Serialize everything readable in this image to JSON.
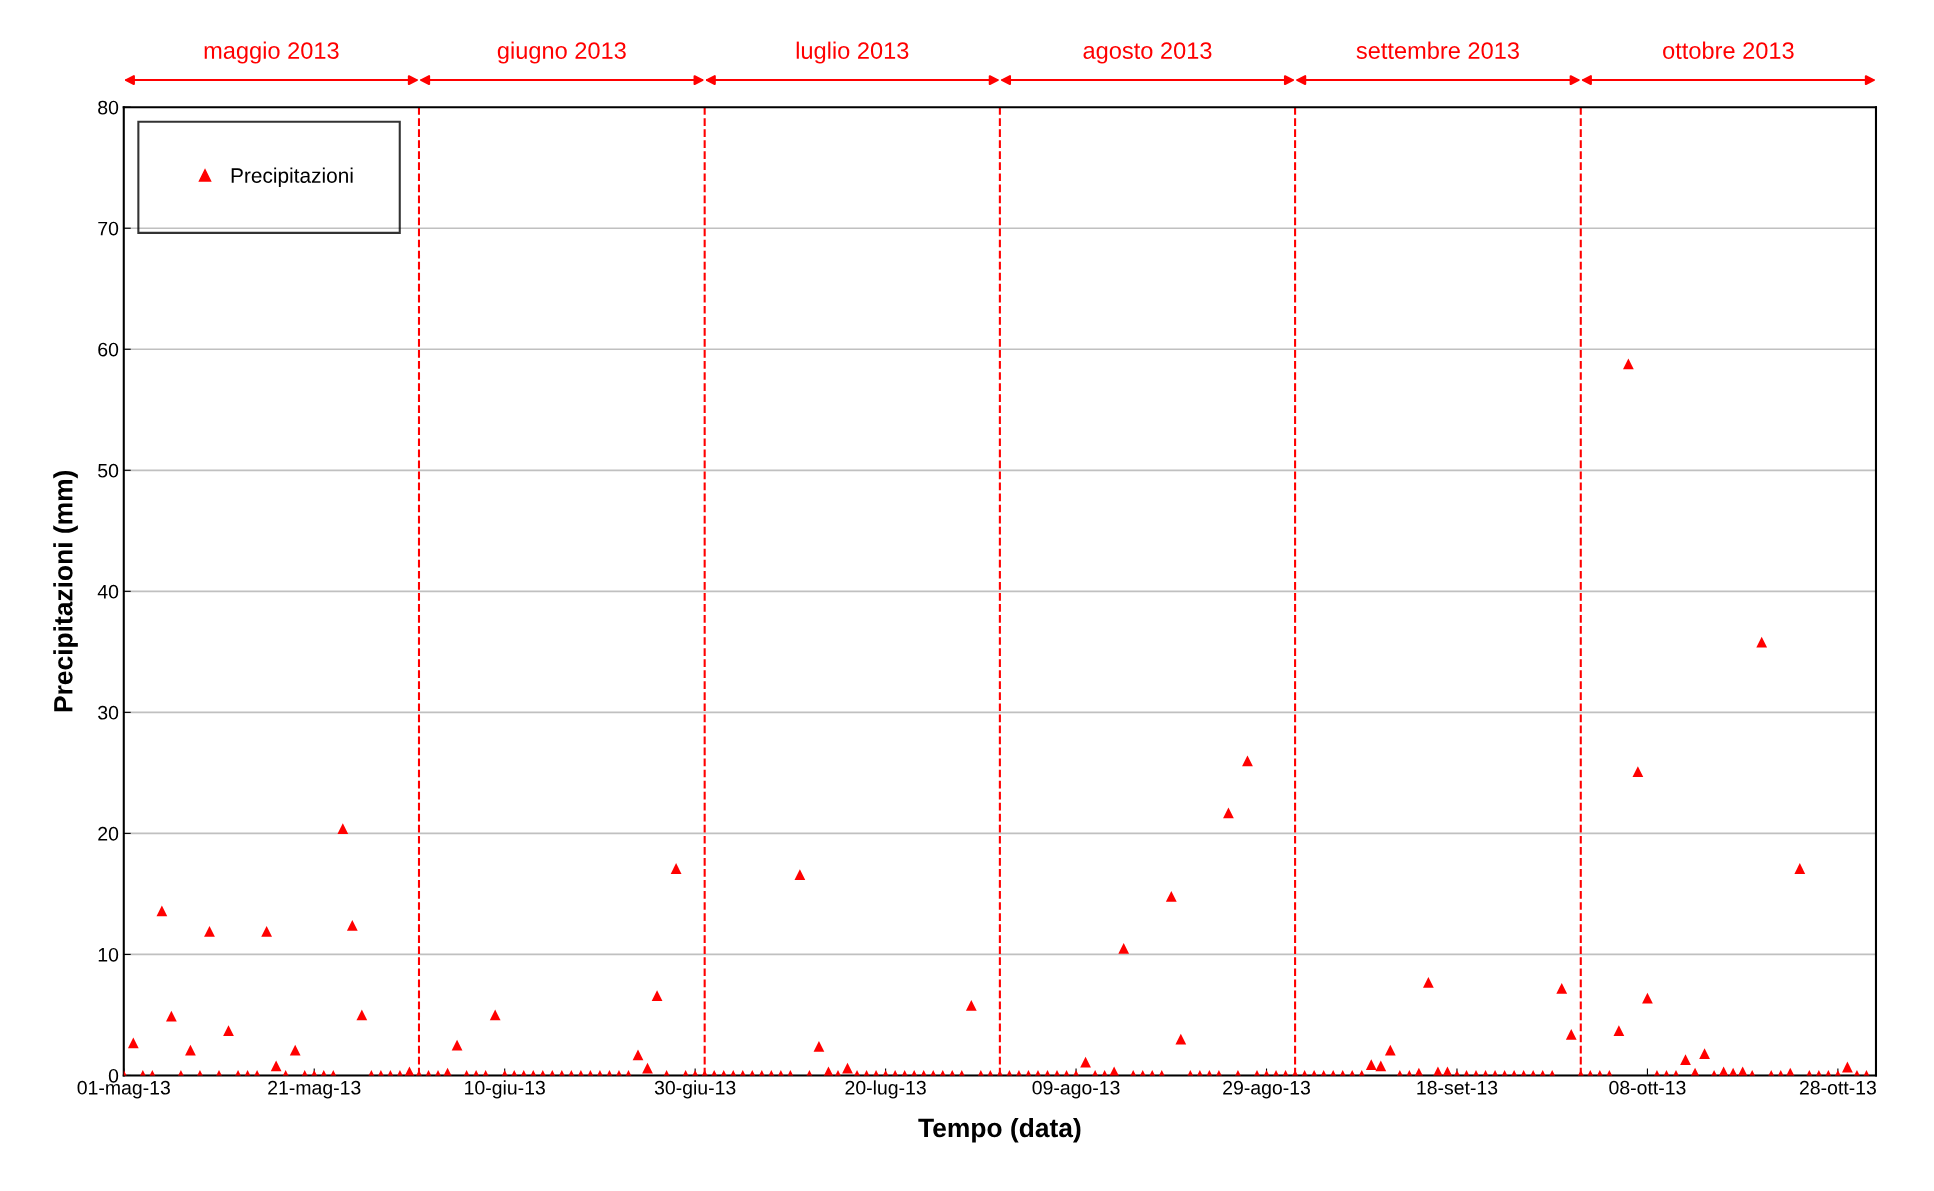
{
  "chart_data": {
    "type": "scatter",
    "xlabel": "Tempo (data)",
    "ylabel": "Precipitazioni (mm)",
    "x": [
      "2013-05-01",
      "2013-05-02",
      "2013-05-03",
      "2013-05-04",
      "2013-05-05",
      "2013-05-06",
      "2013-05-07",
      "2013-05-08",
      "2013-05-09",
      "2013-05-10",
      "2013-05-11",
      "2013-05-12",
      "2013-05-13",
      "2013-05-14",
      "2013-05-15",
      "2013-05-16",
      "2013-05-17",
      "2013-05-18",
      "2013-05-19",
      "2013-05-20",
      "2013-05-21",
      "2013-05-22",
      "2013-05-23",
      "2013-05-24",
      "2013-05-25",
      "2013-05-26",
      "2013-05-27",
      "2013-05-28",
      "2013-05-29",
      "2013-05-30",
      "2013-05-31",
      "2013-06-01",
      "2013-06-02",
      "2013-06-03",
      "2013-06-04",
      "2013-06-05",
      "2013-06-06",
      "2013-06-07",
      "2013-06-08",
      "2013-06-09",
      "2013-06-10",
      "2013-06-11",
      "2013-06-12",
      "2013-06-13",
      "2013-06-14",
      "2013-06-15",
      "2013-06-16",
      "2013-06-17",
      "2013-06-18",
      "2013-06-19",
      "2013-06-20",
      "2013-06-21",
      "2013-06-22",
      "2013-06-23",
      "2013-06-24",
      "2013-06-25",
      "2013-06-26",
      "2013-06-27",
      "2013-06-28",
      "2013-06-29",
      "2013-06-30",
      "2013-07-01",
      "2013-07-02",
      "2013-07-03",
      "2013-07-04",
      "2013-07-05",
      "2013-07-06",
      "2013-07-07",
      "2013-07-08",
      "2013-07-09",
      "2013-07-10",
      "2013-07-11",
      "2013-07-12",
      "2013-07-13",
      "2013-07-14",
      "2013-07-15",
      "2013-07-16",
      "2013-07-17",
      "2013-07-18",
      "2013-07-19",
      "2013-07-20",
      "2013-07-21",
      "2013-07-22",
      "2013-07-23",
      "2013-07-24",
      "2013-07-25",
      "2013-07-26",
      "2013-07-27",
      "2013-07-28",
      "2013-07-29",
      "2013-07-30",
      "2013-07-31",
      "2013-08-01",
      "2013-08-02",
      "2013-08-03",
      "2013-08-04",
      "2013-08-05",
      "2013-08-06",
      "2013-08-07",
      "2013-08-08",
      "2013-08-09",
      "2013-08-10",
      "2013-08-11",
      "2013-08-12",
      "2013-08-13",
      "2013-08-14",
      "2013-08-15",
      "2013-08-16",
      "2013-08-17",
      "2013-08-18",
      "2013-08-19",
      "2013-08-20",
      "2013-08-21",
      "2013-08-22",
      "2013-08-23",
      "2013-08-24",
      "2013-08-25",
      "2013-08-26",
      "2013-08-27",
      "2013-08-28",
      "2013-08-29",
      "2013-08-30",
      "2013-08-31",
      "2013-09-01",
      "2013-09-02",
      "2013-09-03",
      "2013-09-04",
      "2013-09-05",
      "2013-09-06",
      "2013-09-07",
      "2013-09-08",
      "2013-09-09",
      "2013-09-10",
      "2013-09-11",
      "2013-09-12",
      "2013-09-13",
      "2013-09-14",
      "2013-09-15",
      "2013-09-16",
      "2013-09-17",
      "2013-09-18",
      "2013-09-19",
      "2013-09-20",
      "2013-09-21",
      "2013-09-22",
      "2013-09-23",
      "2013-09-24",
      "2013-09-25",
      "2013-09-26",
      "2013-09-27",
      "2013-09-28",
      "2013-09-29",
      "2013-09-30",
      "2013-10-01",
      "2013-10-02",
      "2013-10-03",
      "2013-10-04",
      "2013-10-05",
      "2013-10-06",
      "2013-10-07",
      "2013-10-08",
      "2013-10-09",
      "2013-10-10",
      "2013-10-11",
      "2013-10-12",
      "2013-10-13",
      "2013-10-14",
      "2013-10-15",
      "2013-10-16",
      "2013-10-17",
      "2013-10-18",
      "2013-10-19",
      "2013-10-20",
      "2013-10-21",
      "2013-10-22",
      "2013-10-23",
      "2013-10-24",
      "2013-10-25",
      "2013-10-26",
      "2013-10-27",
      "2013-10-28",
      "2013-10-29",
      "2013-10-30",
      "2013-10-31"
    ],
    "series": [
      {
        "name": "Precipitazioni",
        "color": "#ff0000",
        "values": [
          0,
          2.7,
          0,
          0,
          13.6,
          4.9,
          0,
          2.1,
          0,
          11.9,
          0,
          3.7,
          0,
          0,
          0,
          11.9,
          0.8,
          0,
          2.1,
          0,
          0,
          0,
          0,
          20.4,
          12.4,
          5.0,
          0,
          0,
          0,
          0,
          0.3,
          0,
          0,
          0,
          0.2,
          2.5,
          0,
          0,
          0,
          5.0,
          0,
          0,
          0,
          0,
          0,
          0,
          0,
          0,
          0,
          0,
          0,
          0,
          0,
          0,
          1.7,
          0.6,
          6.6,
          0,
          17.1,
          0,
          0,
          0,
          0,
          0,
          0,
          0,
          0,
          0,
          0,
          0,
          0,
          16.6,
          0,
          2.4,
          0.3,
          0,
          0.6,
          0,
          0,
          0,
          0,
          0,
          0,
          0,
          0,
          0,
          0,
          0,
          0,
          5.8,
          0,
          0,
          0,
          0,
          0,
          0,
          0,
          0,
          0,
          0,
          0,
          1.1,
          0,
          0,
          0.3,
          10.5,
          0,
          0,
          0,
          0,
          14.8,
          3.0,
          0,
          0,
          0,
          0,
          21.7,
          0,
          26.0,
          0,
          0,
          0,
          0,
          0,
          0,
          0,
          0,
          0,
          0,
          0,
          0,
          0.9,
          0.8,
          2.1,
          0,
          0,
          0.2,
          7.7,
          0.3,
          0.3,
          0,
          0,
          0,
          0,
          0,
          0,
          0,
          0,
          0,
          0,
          0,
          7.2,
          3.4,
          0,
          0,
          0,
          0,
          3.7,
          58.8,
          25.1,
          6.4,
          0,
          0,
          0,
          1.3,
          0.2,
          1.8,
          0,
          0.3,
          0.2,
          0.3,
          0,
          35.8,
          0,
          0,
          0.2,
          17.1,
          0,
          0,
          0,
          0,
          0.7,
          0,
          0
        ]
      }
    ],
    "xlim": [
      "2013-05-01",
      "2013-11-01"
    ],
    "xticks": [
      {
        "value": "2013-05-01",
        "label": "01-mag-13"
      },
      {
        "value": "2013-05-21",
        "label": "21-mag-13"
      },
      {
        "value": "2013-06-10",
        "label": "10-giu-13"
      },
      {
        "value": "2013-06-30",
        "label": "30-giu-13"
      },
      {
        "value": "2013-07-20",
        "label": "20-lug-13"
      },
      {
        "value": "2013-08-09",
        "label": "09-ago-13"
      },
      {
        "value": "2013-08-29",
        "label": "29-ago-13"
      },
      {
        "value": "2013-09-18",
        "label": "18-set-13"
      },
      {
        "value": "2013-10-08",
        "label": "08-ott-13"
      },
      {
        "value": "2013-10-28",
        "label": "28-ott-13"
      }
    ],
    "ylim": [
      0,
      80
    ],
    "yticks": [
      0,
      10,
      20,
      30,
      40,
      50,
      60,
      70,
      80
    ],
    "ref_lines": [
      {
        "axis": "x",
        "value": "2013-06-01",
        "color": "#ff0000",
        "line_style": "dashed"
      },
      {
        "axis": "x",
        "value": "2013-07-01",
        "color": "#ff0000",
        "line_style": "dashed"
      },
      {
        "axis": "x",
        "value": "2013-08-01",
        "color": "#ff0000",
        "line_style": "dashed"
      },
      {
        "axis": "x",
        "value": "2013-09-01",
        "color": "#ff0000",
        "line_style": "dashed"
      },
      {
        "axis": "x",
        "value": "2013-10-01",
        "color": "#ff0000",
        "line_style": "dashed"
      }
    ],
    "annotations": [
      "maggio 2013",
      "giugno 2013",
      "luglio 2013",
      "agosto 2013",
      "settembre 2013",
      "ottobre 2013"
    ],
    "grid": "y",
    "legend": "top left",
    "marker": "triangle"
  }
}
